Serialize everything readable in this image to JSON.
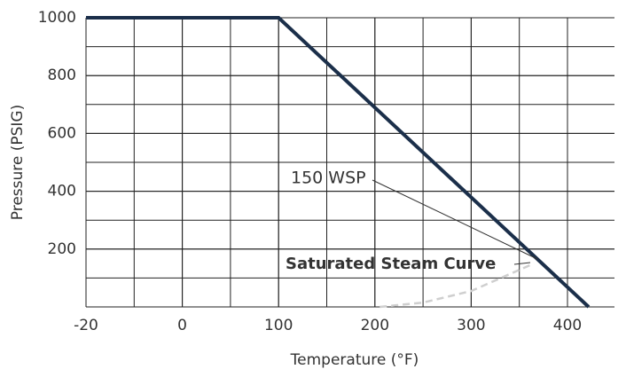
{
  "chart_data": {
    "type": "line",
    "x_label": "Temperature (°F)",
    "y_label": "Pressure (PSIG)",
    "xlim": [
      -20,
      450
    ],
    "xticks": [
      -20,
      0,
      100,
      200,
      300,
      400
    ],
    "ylim": [
      0,
      1000
    ],
    "yticks": [
      200,
      400,
      600,
      800,
      1000
    ],
    "grid": true,
    "series": [
      {
        "name": "150 WSP",
        "color": "#1b2f4a",
        "x": [
          -20,
          100,
          422
        ],
        "values": [
          1000,
          1000,
          0
        ]
      },
      {
        "name": "Saturated Steam Curve",
        "color": "#cfcfcf",
        "dashed": true,
        "x": [
          205,
          250,
          300,
          365
        ],
        "values": [
          0,
          15,
          55,
          150
        ]
      }
    ]
  }
}
